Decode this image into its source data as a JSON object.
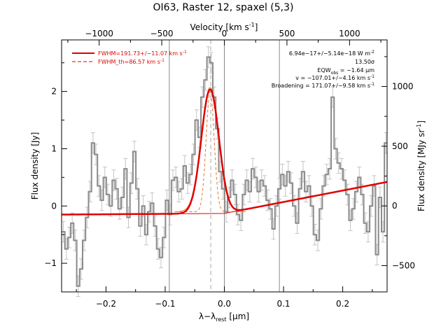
{
  "chart_data": {
    "type": "line",
    "title": "OI63, Raster 12, spaxel (5,3)",
    "xlabel": "λ−λ",
    "xlabel_sub": "rest",
    "xlabel_unit": "[μm]",
    "ylabel": "Flux density [Jy]",
    "top_xlabel": "Velocity [km s",
    "top_xlabel_sup": "-1",
    "top_xlabel_end": "]",
    "right_ylabel": "Flux density [MJy sr",
    "right_ylabel_sup": "-1",
    "right_ylabel_end": "]",
    "xlim": [
      -0.275,
      0.275
    ],
    "ylim": [
      -1.5,
      2.9
    ],
    "top_xlim": [
      -1300,
      1300
    ],
    "right_ylim": [
      -720,
      1390
    ],
    "x_ticks": [
      -0.2,
      -0.1,
      0.0,
      0.1,
      0.2
    ],
    "x_tick_labels": [
      "−0.2",
      "−0.1",
      "0.0",
      "0.1",
      "0.2"
    ],
    "y_ticks": [
      -1,
      0,
      1,
      2
    ],
    "y_tick_labels": [
      "−1",
      "0",
      "1",
      "2"
    ],
    "top_ticks": [
      -1000,
      -500,
      0,
      500,
      1000
    ],
    "top_tick_labels": [
      "−1000",
      "−500",
      "0",
      "500",
      "1000"
    ],
    "right_ticks": [
      -500,
      0,
      500,
      1000
    ],
    "right_tick_labels": [
      "−500",
      "0",
      "500",
      "1000"
    ],
    "vlines": [
      -0.093,
      0.0,
      0.093
    ],
    "line_center": -0.023,
    "fit": {
      "baseline": {
        "x0": -0.275,
        "y0": -0.15,
        "x1": 0.275,
        "y1": 0.42,
        "knee": 0.0,
        "knee_y": -0.13
      },
      "gauss_amp": 2.17,
      "gauss_center": -0.024,
      "gauss_sigma": 0.0149,
      "th_sigma": 0.0068
    },
    "series": [
      {
        "name": "data",
        "x": [
          -0.272,
          -0.267,
          -0.262,
          -0.257,
          -0.252,
          -0.247,
          -0.242,
          -0.237,
          -0.232,
          -0.227,
          -0.222,
          -0.217,
          -0.212,
          -0.207,
          -0.202,
          -0.197,
          -0.192,
          -0.187,
          -0.182,
          -0.177,
          -0.172,
          -0.167,
          -0.162,
          -0.157,
          -0.152,
          -0.147,
          -0.142,
          -0.137,
          -0.132,
          -0.127,
          -0.122,
          -0.117,
          -0.112,
          -0.107,
          -0.102,
          -0.097,
          -0.092,
          -0.087,
          -0.082,
          -0.077,
          -0.072,
          -0.067,
          -0.062,
          -0.057,
          -0.052,
          -0.047,
          -0.042,
          -0.037,
          -0.032,
          -0.027,
          -0.022,
          -0.017,
          -0.012,
          -0.007,
          -0.002,
          0.003,
          0.008,
          0.013,
          0.018,
          0.023,
          0.028,
          0.033,
          0.038,
          0.043,
          0.048,
          0.053,
          0.058,
          0.063,
          0.068,
          0.073,
          0.078,
          0.083,
          0.088,
          0.093,
          0.098,
          0.103,
          0.108,
          0.113,
          0.118,
          0.123,
          0.128,
          0.133,
          0.138,
          0.143,
          0.148,
          0.153,
          0.158,
          0.163,
          0.168,
          0.173,
          0.178,
          0.183,
          0.188,
          0.193,
          0.198,
          0.203,
          0.208,
          0.213,
          0.218,
          0.223,
          0.228,
          0.233,
          0.238,
          0.243,
          0.248,
          0.253,
          0.258,
          0.263,
          0.268,
          0.273
        ],
        "y": [
          -0.45,
          -0.75,
          -0.55,
          -0.3,
          -0.6,
          -1.4,
          -1.1,
          -0.6,
          -0.2,
          0.25,
          1.1,
          0.9,
          0.35,
          0.1,
          0.5,
          0.2,
          0.0,
          0.45,
          0.3,
          -0.05,
          0.15,
          0.65,
          -0.2,
          0.4,
          0.95,
          0.3,
          -0.35,
          0.0,
          -0.5,
          -0.1,
          0.05,
          -0.35,
          -0.75,
          -0.9,
          -0.55,
          0.1,
          -0.15,
          0.45,
          0.5,
          0.25,
          0.3,
          0.7,
          0.4,
          0.55,
          0.9,
          1.5,
          1.2,
          1.9,
          2.2,
          2.6,
          2.5,
          1.9,
          1.35,
          0.6,
          0.3,
          -0.1,
          0.15,
          0.45,
          0.2,
          -0.15,
          -0.25,
          0.2,
          0.45,
          0.25,
          0.65,
          0.5,
          0.25,
          0.45,
          0.35,
          0.1,
          -0.05,
          -0.4,
          0.0,
          0.3,
          0.55,
          0.35,
          0.6,
          0.4,
          0.0,
          -0.3,
          0.3,
          0.6,
          0.25,
          0.35,
          0.0,
          -0.5,
          -0.6,
          -0.05,
          0.35,
          0.55,
          0.65,
          1.9,
          1.0,
          0.75,
          0.65,
          0.45,
          0.2,
          -0.25,
          -0.05,
          0.25,
          0.5,
          0.2,
          -0.3,
          -0.45,
          0.0,
          0.35,
          -0.85,
          0.15,
          -0.45,
          1.1
        ],
        "err": 0.18
      }
    ],
    "legend": [
      {
        "label": "FWHM=191.73+/−11.07 km s",
        "sup": "-1",
        "style": "solid"
      },
      {
        "label": "FWHM_th=86.57 km s",
        "sup": "-1",
        "style": "dashed"
      }
    ],
    "annotations": [
      {
        "text": "6.94e−17+/−5.14e−18 W m",
        "sup": "-2"
      },
      {
        "text": "13.50σ"
      },
      {
        "text": "EQW",
        "sub": "obs",
        "text2": " = −1.64 μm"
      },
      {
        "text": "v = −107.01+/−4.16 km s",
        "sup": "-1"
      },
      {
        "text": "Broadening = 171.07+/−9.58 km s",
        "sup": "-1"
      }
    ],
    "colors": {
      "data": "#8a8a8a",
      "errorbar": "#c4c4c4",
      "fit": "#e00000",
      "component": "#e8772a",
      "vline": "#8a8a8a",
      "center": "#a8a8a8"
    }
  }
}
